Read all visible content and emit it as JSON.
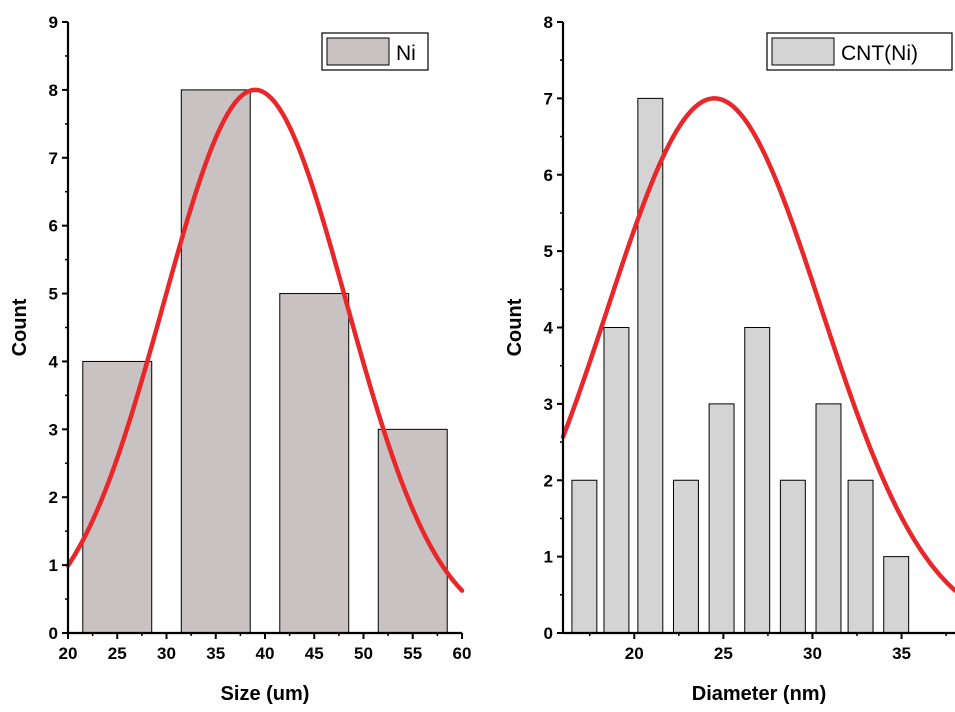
{
  "chart_data": [
    {
      "type": "bar",
      "xlabel": "Size (um)",
      "ylabel": "Count",
      "xlim": [
        20,
        60
      ],
      "ylim": [
        0,
        9
      ],
      "x_ticks": [
        20,
        25,
        30,
        35,
        40,
        45,
        50,
        55,
        60
      ],
      "y_ticks": [
        0,
        1,
        2,
        3,
        4,
        5,
        6,
        7,
        8,
        9
      ],
      "bar_width": 7,
      "legend": {
        "label": "Ni",
        "position": "top-right"
      },
      "series": [
        {
          "name": "Ni",
          "x": [
            25,
            35,
            45,
            55
          ],
          "values": [
            4,
            8,
            5,
            3
          ],
          "color": "#c9c2c2"
        }
      ],
      "fit": {
        "type": "gaussian",
        "peak": 8.0,
        "center": 39,
        "sigma": 9.3,
        "color": "#e8272b"
      }
    },
    {
      "type": "bar",
      "xlabel": "Diameter (nm)",
      "ylabel": "Count",
      "xlim": [
        16,
        38
      ],
      "ylim": [
        0,
        8
      ],
      "x_ticks": [
        20,
        25,
        30,
        35
      ],
      "y_ticks": [
        0,
        1,
        2,
        3,
        4,
        5,
        6,
        7,
        8
      ],
      "bar_width": 1.4,
      "legend": {
        "label": "CNT(Ni)",
        "position": "top-right"
      },
      "series": [
        {
          "name": "CNT(Ni)",
          "x": [
            17.2,
            19.0,
            20.9,
            22.9,
            24.9,
            26.9,
            28.9,
            30.9,
            32.7,
            34.7
          ],
          "values": [
            2,
            4,
            7,
            2,
            3,
            4,
            2,
            3,
            2,
            1
          ],
          "color": "#d4d4d4"
        }
      ],
      "fit": {
        "type": "gaussian",
        "peak": 7.0,
        "center": 24.5,
        "sigma": 6.0,
        "color": "#e8272b"
      }
    }
  ]
}
